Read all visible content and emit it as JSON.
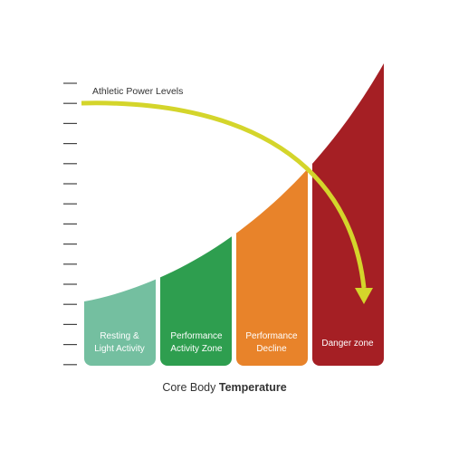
{
  "curve_label": "Athletic Power Levels",
  "zones": [
    {
      "lines": [
        "Resting &",
        "Light Activity"
      ]
    },
    {
      "lines": [
        "Performance",
        "Activity Zone"
      ]
    },
    {
      "lines": [
        "Performance",
        "Decline"
      ]
    },
    {
      "lines": [
        "Danger zone"
      ]
    }
  ],
  "x_axis_label": {
    "text": "Core Body",
    "emphasis": "Temperature"
  }
}
